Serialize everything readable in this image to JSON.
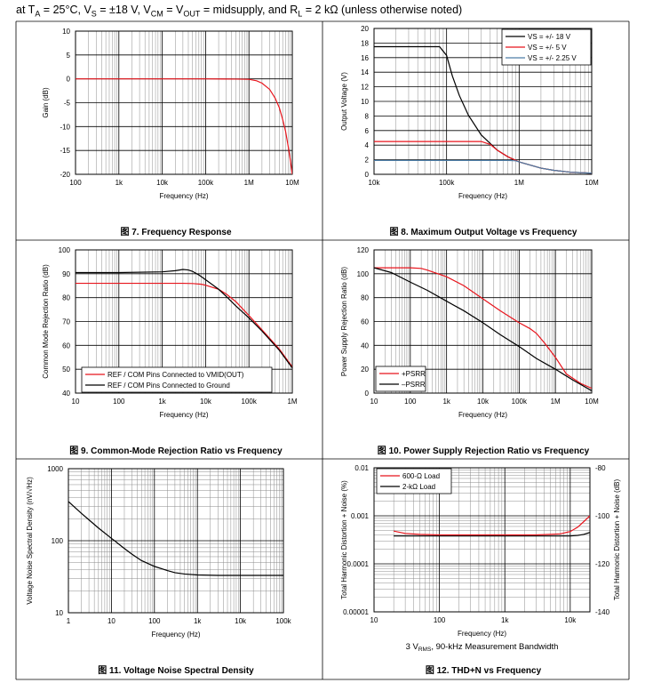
{
  "header": {
    "p1": "at T",
    "s1": "A",
    "p2": " = 25°C, V",
    "s2": "S",
    "p3": " = ±18 V, V",
    "s3": "CM",
    "p4": " = V",
    "s4": "OUT",
    "p5": " = midsupply, and R",
    "s5": "L",
    "p6": " = 2 kΩ (unless otherwise noted)"
  },
  "colors": {
    "black": "#000000",
    "red": "#e8141c",
    "blue": "#4d7ea8",
    "grid": "#000000",
    "minor_grid": "#8c8c8c"
  },
  "chart_data": [
    {
      "id": "fig7",
      "type": "line",
      "caption": "图 7. Frequency Response",
      "xlabel": "Frequency (Hz)",
      "ylabel": "Gain (dB)",
      "xscale": "log",
      "xlim": [
        100,
        10000000
      ],
      "ylim": [
        -20,
        10
      ],
      "xticks": [
        100,
        1000,
        10000,
        100000,
        1000000,
        10000000
      ],
      "xticklabels": [
        "100",
        "1k",
        "10k",
        "100k",
        "1M",
        "10M"
      ],
      "yticks": [
        -20,
        -15,
        -10,
        -5,
        0,
        5,
        10
      ],
      "yticklabels": [
        "-20",
        "-15",
        "-10",
        "-5",
        "0",
        "5",
        "10"
      ],
      "grid": true,
      "legend": null,
      "series": [
        {
          "color": "#e8141c",
          "x": [
            100,
            1000,
            10000,
            100000,
            500000,
            1000000,
            1500000,
            2000000,
            3000000,
            4000000,
            5000000,
            6000000,
            7000000,
            8000000,
            9000000,
            10000000
          ],
          "y": [
            0,
            0,
            0,
            0,
            -0.05,
            -0.1,
            -0.4,
            -0.9,
            -2.2,
            -4,
            -6,
            -8.5,
            -11,
            -14,
            -17,
            -20
          ]
        }
      ]
    },
    {
      "id": "fig8",
      "type": "line",
      "caption": "图 8. Maximum Output Voltage vs Frequency",
      "xlabel": "Frequency (Hz)",
      "ylabel": "Output Voltage (V)",
      "xscale": "log",
      "xlim": [
        10000,
        10000000
      ],
      "ylim": [
        0,
        20
      ],
      "xticks": [
        10000,
        100000,
        1000000,
        10000000
      ],
      "xticklabels": [
        "10k",
        "100k",
        "1M",
        "10M"
      ],
      "yticks": [
        0,
        2,
        4,
        6,
        8,
        10,
        12,
        14,
        16,
        18,
        20
      ],
      "yticklabels": [
        "0",
        "2",
        "4",
        "6",
        "8",
        "10",
        "12",
        "14",
        "16",
        "18",
        "20"
      ],
      "grid": true,
      "legend": "top-right",
      "series": [
        {
          "name": "VS = +/- 18 V",
          "color": "#000000",
          "x": [
            10000,
            50000,
            80000,
            100000,
            120000,
            150000,
            200000,
            300000,
            500000,
            700000,
            1000000,
            2000000,
            3000000,
            5000000,
            10000000
          ],
          "y": [
            17.5,
            17.5,
            17.5,
            16.3,
            13.5,
            10.8,
            8.1,
            5.4,
            3.3,
            2.4,
            1.7,
            0.85,
            0.55,
            0.3,
            0.15
          ]
        },
        {
          "name": "VS = +/- 5 V",
          "color": "#e8141c",
          "x": [
            10000,
            100000,
            200000,
            300000,
            400000,
            500000,
            700000,
            1000000,
            2000000,
            3000000,
            5000000,
            10000000
          ],
          "y": [
            4.5,
            4.5,
            4.5,
            4.5,
            4.1,
            3.3,
            2.4,
            1.7,
            0.85,
            0.55,
            0.3,
            0.15
          ]
        },
        {
          "name": "VS = +/- 2.25 V",
          "color": "#4d7ea8",
          "x": [
            10000,
            100000,
            300000,
            500000,
            700000,
            900000,
            1000000,
            2000000,
            3000000,
            5000000,
            10000000
          ],
          "y": [
            1.9,
            1.9,
            1.9,
            1.9,
            1.9,
            1.85,
            1.7,
            0.85,
            0.55,
            0.3,
            0.15
          ]
        }
      ]
    },
    {
      "id": "fig9",
      "type": "line",
      "caption": "图 9. Common-Mode Rejection Ratio vs Frequency",
      "xlabel": "Frequency (Hz)",
      "ylabel": "Common Mode Rejection Ratio (dB)",
      "xscale": "log",
      "xlim": [
        10,
        1000000
      ],
      "ylim": [
        40,
        100
      ],
      "xticks": [
        10,
        100,
        1000,
        10000,
        100000,
        1000000
      ],
      "xticklabels": [
        "10",
        "100",
        "1k",
        "10k",
        "100k",
        "1M"
      ],
      "yticks": [
        40,
        50,
        60,
        70,
        80,
        90,
        100
      ],
      "yticklabels": [
        "40",
        "50",
        "60",
        "70",
        "80",
        "90",
        "100"
      ],
      "grid": true,
      "legend": "bottom-left",
      "series": [
        {
          "name": "REF / COM Pins Connected to VMID(OUT)",
          "color": "#e8141c",
          "x": [
            10,
            100,
            1000,
            3000,
            5000,
            8000,
            10000,
            20000,
            30000,
            50000,
            100000,
            200000,
            500000,
            1000000
          ],
          "y": [
            86,
            86,
            86,
            86,
            85.9,
            85.6,
            85.2,
            83.5,
            81.5,
            78.3,
            72.5,
            66.5,
            58.5,
            51
          ]
        },
        {
          "name": "REF / COM Pins Connected to Ground",
          "color": "#000000",
          "x": [
            10,
            100,
            1000,
            2000,
            3000,
            4000,
            5000,
            7000,
            10000,
            20000,
            30000,
            50000,
            100000,
            200000,
            500000,
            1000000
          ],
          "y": [
            90.5,
            90.5,
            90.8,
            91.3,
            91.8,
            91.6,
            91,
            89.5,
            87.5,
            83.5,
            80.5,
            76.5,
            71.5,
            66,
            58,
            50.5
          ]
        }
      ]
    },
    {
      "id": "fig10",
      "type": "line",
      "caption": "图 10. Power Supply Rejection Ratio vs Frequency",
      "xlabel": "Frequency (Hz)",
      "ylabel": "Power Supply Rejection Ratio (dB)",
      "xscale": "log",
      "xlim": [
        10,
        10000000
      ],
      "ylim": [
        0,
        120
      ],
      "xticks": [
        10,
        100,
        1000,
        10000,
        100000,
        1000000,
        10000000
      ],
      "xticklabels": [
        "10",
        "100",
        "1k",
        "10k",
        "100k",
        "1M",
        "10M"
      ],
      "yticks": [
        0,
        20,
        40,
        60,
        80,
        100,
        120
      ],
      "yticklabels": [
        "0",
        "20",
        "40",
        "60",
        "80",
        "100",
        "120"
      ],
      "grid": true,
      "legend": "bottom-left",
      "series": [
        {
          "name": "+PSRR",
          "color": "#e8141c",
          "x": [
            10,
            30,
            100,
            200,
            300,
            1000,
            3000,
            10000,
            30000,
            100000,
            200000,
            300000,
            500000,
            1000000,
            2000000,
            5000000,
            10000000
          ],
          "y": [
            105,
            105,
            105,
            104.5,
            103,
            97.5,
            90,
            79,
            69,
            59,
            54,
            50,
            42,
            30,
            16,
            8,
            4
          ]
        },
        {
          "name": "–PSRR",
          "color": "#000000",
          "x": [
            10,
            30,
            100,
            300,
            1000,
            3000,
            10000,
            30000,
            100000,
            300000,
            1000000,
            3000000,
            10000000
          ],
          "y": [
            105,
            101,
            93,
            86,
            77,
            69,
            59,
            49,
            39,
            29,
            20,
            11,
            2
          ]
        }
      ]
    },
    {
      "id": "fig11",
      "type": "line",
      "caption": "图 11. Voltage Noise Spectral Density",
      "xlabel": "Frequency (Hz)",
      "ylabel": "Voltage Noise Spectral Density (nV/√Hz)",
      "xscale": "log",
      "yscale": "log",
      "xlim": [
        1,
        100000
      ],
      "ylim": [
        10,
        1000
      ],
      "xticks": [
        1,
        10,
        100,
        1000,
        10000,
        100000
      ],
      "xticklabels": [
        "1",
        "10",
        "100",
        "1k",
        "10k",
        "100k"
      ],
      "yticks": [
        10,
        100,
        1000
      ],
      "yticklabels": [
        "10",
        "100",
        "1000"
      ],
      "grid": true,
      "legend": null,
      "series": [
        {
          "color": "#000000",
          "x": [
            1,
            2,
            3,
            5,
            10,
            20,
            30,
            50,
            100,
            200,
            300,
            500,
            1000,
            3000,
            10000,
            100000
          ],
          "y": [
            350,
            240,
            195,
            150,
            108,
            78,
            65,
            53,
            44,
            38.5,
            36,
            34.5,
            33.5,
            33,
            33,
            33
          ]
        }
      ]
    },
    {
      "id": "fig12",
      "type": "line",
      "caption": "图 12. THD+N vs Frequency",
      "subtitle": {
        "p1": "3 V",
        "s1": "RMS",
        "p2": ", 90-kHz Measurement Bandwidth"
      },
      "xlabel": "Frequency (Hz)",
      "ylabel": "Total Harmonic Distortion + Noise (%)",
      "ylabel_right": "Total Harmonic Distortion + Noise (dB)",
      "xscale": "log",
      "yscale": "log",
      "xlim": [
        10,
        20000
      ],
      "ylim": [
        1e-05,
        0.01
      ],
      "xticks": [
        10,
        100,
        1000,
        10000
      ],
      "xticklabels": [
        "10",
        "100",
        "1k",
        "10k"
      ],
      "yticks": [
        1e-05,
        0.0001,
        0.001,
        0.01
      ],
      "yticklabels": [
        "0.00001",
        "0.0001",
        "0.001",
        "0.01"
      ],
      "yticklabels_right": [
        "-140",
        "-120",
        "-100",
        "-80"
      ],
      "grid": true,
      "legend": "top-left",
      "series": [
        {
          "name": "600-Ω Load",
          "color": "#e8141c",
          "x": [
            20,
            30,
            50,
            100,
            300,
            1000,
            3000,
            5000,
            7000,
            10000,
            13000,
            16000,
            20000
          ],
          "y": [
            0.00048,
            0.00043,
            0.00041,
            0.0004,
            0.0004,
            0.0004,
            0.0004,
            0.00041,
            0.00042,
            0.00047,
            0.00058,
            0.00075,
            0.001
          ]
        },
        {
          "name": "2-kΩ Load",
          "color": "#000000",
          "x": [
            20,
            30,
            50,
            100,
            300,
            1000,
            3000,
            7000,
            10000,
            13000,
            16000,
            20000
          ],
          "y": [
            0.00038,
            0.00038,
            0.00038,
            0.00038,
            0.00038,
            0.00038,
            0.00038,
            0.00038,
            0.00038,
            0.00039,
            0.00041,
            0.00045
          ]
        }
      ]
    }
  ]
}
